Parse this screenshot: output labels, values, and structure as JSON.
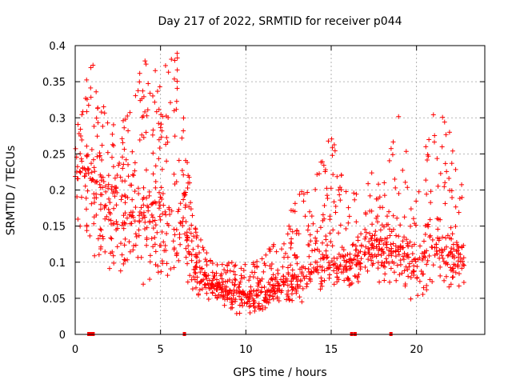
{
  "chart_data": {
    "type": "scatter",
    "title": "Day 217 of 2022, SRMTID for receiver p044",
    "xlabel": "GPS time / hours",
    "ylabel": "SRMTID / TECUs",
    "xlim": [
      0,
      24
    ],
    "ylim": [
      0,
      0.4
    ],
    "xticks": [
      0,
      5,
      10,
      15,
      20
    ],
    "yticks": [
      0,
      0.05,
      0.1,
      0.15,
      0.2,
      0.25,
      0.3,
      0.35,
      0.4
    ],
    "xtick_labels": [
      "0",
      "5",
      "10",
      "15",
      "20"
    ],
    "ytick_labels": [
      "0",
      "0.05",
      "0.1",
      "0.15",
      "0.2",
      "0.25",
      "0.3",
      "0.35",
      "0.4"
    ],
    "grid": true,
    "marker": "+",
    "marker_color": "#ff0000",
    "x_range_of_data": [
      0,
      22.8
    ],
    "gap_markers_x": [
      0.8,
      0.95,
      1.05,
      6.4,
      16.2,
      16.4,
      18.5
    ],
    "envelope_note": "dense band of points; median/max trend by hour",
    "series": [
      {
        "name": "SRMTID",
        "x_hours": [
          0,
          1,
          2,
          3,
          4,
          5,
          6,
          7,
          8,
          9,
          10,
          11,
          12,
          13,
          14,
          15,
          16,
          17,
          18,
          19,
          20,
          21,
          22,
          22.8
        ],
        "median": [
          0.22,
          0.23,
          0.2,
          0.18,
          0.17,
          0.19,
          0.18,
          0.1,
          0.07,
          0.06,
          0.055,
          0.06,
          0.07,
          0.08,
          0.1,
          0.11,
          0.1,
          0.12,
          0.13,
          0.12,
          0.1,
          0.13,
          0.12,
          0.11
        ],
        "max": [
          0.35,
          0.38,
          0.3,
          0.3,
          0.39,
          0.37,
          0.39,
          0.15,
          0.1,
          0.1,
          0.1,
          0.11,
          0.14,
          0.19,
          0.22,
          0.28,
          0.19,
          0.24,
          0.2,
          0.32,
          0.2,
          0.33,
          0.28,
          0.2
        ],
        "min": [
          0.1,
          0.1,
          0.08,
          0.07,
          0.05,
          0.07,
          0.08,
          0.05,
          0.035,
          0.03,
          0.025,
          0.03,
          0.035,
          0.04,
          0.05,
          0.06,
          0.06,
          0.07,
          0.07,
          0.06,
          0.04,
          0.06,
          0.05,
          0.06
        ]
      }
    ]
  }
}
